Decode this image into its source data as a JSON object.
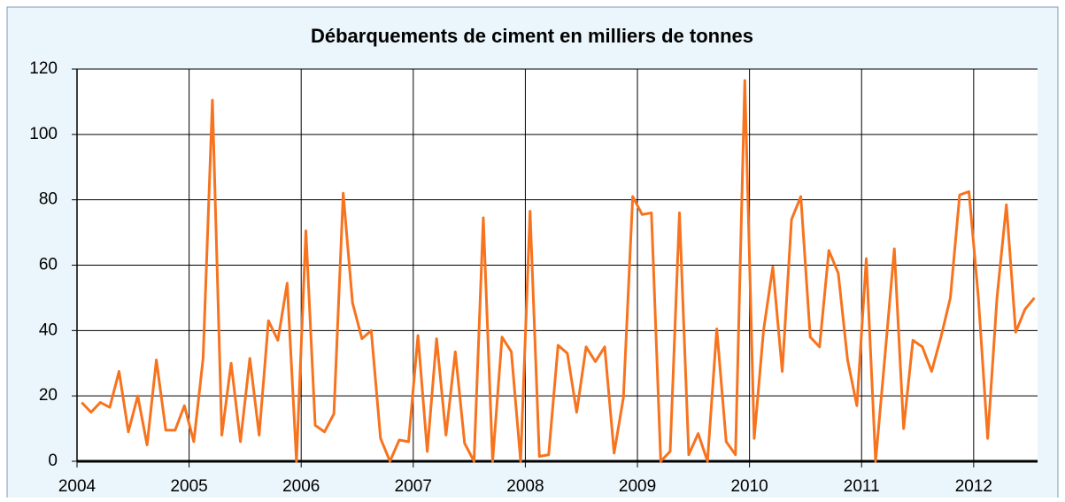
{
  "chart_data": {
    "type": "line",
    "title": "Débarquements de ciment en milliers de tonnes",
    "x": [
      2004.042,
      2004.125,
      2004.208,
      2004.292,
      2004.375,
      2004.458,
      2004.542,
      2004.625,
      2004.708,
      2004.792,
      2004.875,
      2004.958,
      2005.042,
      2005.125,
      2005.208,
      2005.292,
      2005.375,
      2005.458,
      2005.542,
      2005.625,
      2005.708,
      2005.792,
      2005.875,
      2005.958,
      2006.042,
      2006.125,
      2006.208,
      2006.292,
      2006.375,
      2006.458,
      2006.542,
      2006.625,
      2006.708,
      2006.792,
      2006.875,
      2006.958,
      2007.042,
      2007.125,
      2007.208,
      2007.292,
      2007.375,
      2007.458,
      2007.542,
      2007.625,
      2007.708,
      2007.792,
      2007.875,
      2007.958,
      2008.042,
      2008.125,
      2008.208,
      2008.292,
      2008.375,
      2008.458,
      2008.542,
      2008.625,
      2008.708,
      2008.792,
      2008.875,
      2008.958,
      2009.042,
      2009.125,
      2009.208,
      2009.292,
      2009.375,
      2009.458,
      2009.542,
      2009.625,
      2009.708,
      2009.792,
      2009.875,
      2009.958,
      2010.042,
      2010.125,
      2010.208,
      2010.292,
      2010.375,
      2010.458,
      2010.542,
      2010.625,
      2010.708,
      2010.792,
      2010.875,
      2010.958,
      2011.042,
      2011.125,
      2011.208,
      2011.292,
      2011.375,
      2011.458,
      2011.542,
      2011.625,
      2011.708,
      2011.792,
      2011.875,
      2011.958,
      2012.042,
      2012.125,
      2012.208,
      2012.292,
      2012.375,
      2012.458,
      2012.542
    ],
    "series": [
      {
        "color": "#f7731e",
        "values": [
          18,
          15,
          18,
          16.5,
          27.5,
          9,
          20,
          5,
          31,
          9.5,
          9.5,
          17,
          6,
          31.5,
          110.5,
          8,
          30,
          6,
          31.5,
          8,
          43,
          37,
          54.5,
          0,
          70.5,
          11,
          9,
          14.5,
          82,
          48.5,
          37.5,
          40,
          7,
          0,
          6.5,
          6,
          38.5,
          3,
          37.5,
          8,
          33.5,
          5.5,
          0,
          74.5,
          0,
          38,
          33.5,
          0,
          76.5,
          1.5,
          2,
          35.5,
          33,
          15,
          35,
          30.5,
          35,
          2.5,
          19.5,
          81,
          75.5,
          76,
          0,
          3,
          76,
          2,
          8.5,
          0,
          40.5,
          6,
          2,
          116.5,
          7,
          40,
          59.5,
          27.5,
          74,
          81,
          38,
          35,
          64.5,
          57.5,
          31,
          17,
          62,
          0,
          32,
          65,
          10,
          37,
          35,
          27.5,
          38,
          50,
          81.5,
          82.5,
          50,
          7,
          50,
          78.5,
          39.5,
          46.5,
          50
        ]
      }
    ],
    "xlim": [
      2004,
      2012.57
    ],
    "xticks": [
      2004,
      2005,
      2006,
      2007,
      2008,
      2009,
      2010,
      2011,
      2012
    ],
    "ylim": [
      0,
      120
    ],
    "yticks": [
      0,
      20,
      40,
      60,
      80,
      100,
      120
    ],
    "grid": true
  }
}
